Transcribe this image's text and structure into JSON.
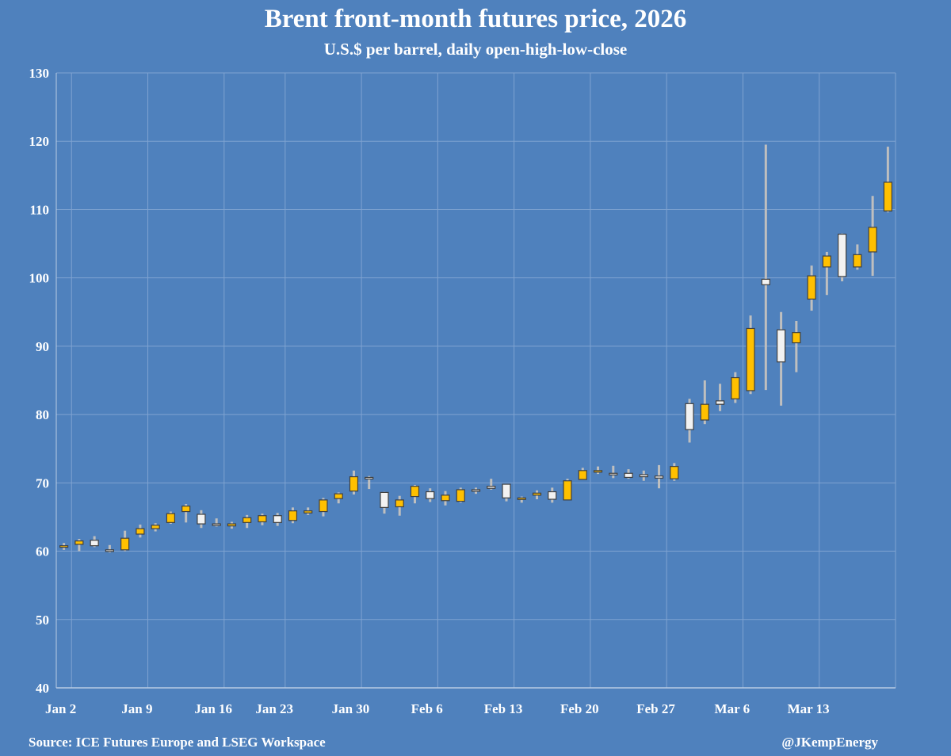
{
  "chart_data": {
    "type": "ohlc",
    "title": "Brent front-month futures price, 2026",
    "subtitle": "U.S.$ per barrel, daily open-high-low-close",
    "xlabel": "",
    "ylabel": "",
    "ylim": [
      40,
      130
    ],
    "y_ticks": [
      40,
      50,
      60,
      70,
      80,
      90,
      100,
      110,
      120,
      130
    ],
    "grid": true,
    "x_tick_labels": [
      "Jan 2",
      "Jan 9",
      "Jan 16",
      "Jan 23",
      "Jan 30",
      "Feb 6",
      "Feb 13",
      "Feb 20",
      "Feb 27",
      "Mar 6",
      "Mar 13"
    ],
    "colors": {
      "up": "#ffc000",
      "down": "#f2f2f2",
      "wick": "#bfbfbf",
      "outline": "#404040",
      "grid": "#7fa3d1",
      "axis": "#b9cce4"
    },
    "series": [
      {
        "date": "Jan 2",
        "open": 60.8,
        "high": 61.2,
        "low": 60.2,
        "close": 60.8
      },
      {
        "date": "Jan 5",
        "open": 61.0,
        "high": 61.8,
        "low": 60.0,
        "close": 61.5
      },
      {
        "date": "Jan 6",
        "open": 61.6,
        "high": 62.2,
        "low": 60.6,
        "close": 60.8
      },
      {
        "date": "Jan 7",
        "open": 60.2,
        "high": 60.9,
        "low": 59.8,
        "close": 60.0
      },
      {
        "date": "Jan 8",
        "open": 60.2,
        "high": 63.0,
        "low": 60.0,
        "close": 61.9
      },
      {
        "date": "Jan 9",
        "open": 62.5,
        "high": 63.9,
        "low": 62.0,
        "close": 63.3
      },
      {
        "date": "Jan 12",
        "open": 63.3,
        "high": 64.1,
        "low": 62.9,
        "close": 63.8
      },
      {
        "date": "Jan 13",
        "open": 64.2,
        "high": 65.8,
        "low": 64.0,
        "close": 65.5
      },
      {
        "date": "Jan 14",
        "open": 65.8,
        "high": 66.9,
        "low": 64.2,
        "close": 66.6
      },
      {
        "date": "Jan 15",
        "open": 65.4,
        "high": 66.0,
        "low": 63.4,
        "close": 64.0
      },
      {
        "date": "Jan 16",
        "open": 64.0,
        "high": 64.8,
        "low": 63.6,
        "close": 63.8
      },
      {
        "date": "Jan 20",
        "open": 63.7,
        "high": 64.3,
        "low": 63.3,
        "close": 64.0
      },
      {
        "date": "Jan 21",
        "open": 64.2,
        "high": 65.3,
        "low": 63.4,
        "close": 64.9
      },
      {
        "date": "Jan 22",
        "open": 64.3,
        "high": 65.5,
        "low": 63.8,
        "close": 65.2
      },
      {
        "date": "Jan 23",
        "open": 65.2,
        "high": 65.6,
        "low": 63.7,
        "close": 64.2
      },
      {
        "date": "Jan 26",
        "open": 64.5,
        "high": 66.4,
        "low": 64.1,
        "close": 65.9
      },
      {
        "date": "Jan 27",
        "open": 65.6,
        "high": 66.4,
        "low": 65.3,
        "close": 65.9
      },
      {
        "date": "Jan 28",
        "open": 65.8,
        "high": 67.8,
        "low": 65.1,
        "close": 67.5
      },
      {
        "date": "Jan 29",
        "open": 67.7,
        "high": 68.6,
        "low": 67.0,
        "close": 68.4
      },
      {
        "date": "Jan 30",
        "open": 68.8,
        "high": 71.8,
        "low": 68.3,
        "close": 70.9
      },
      {
        "date": "Feb 2",
        "open": 70.8,
        "high": 71.0,
        "low": 69.1,
        "close": 70.6
      },
      {
        "date": "Feb 3",
        "open": 68.6,
        "high": 68.7,
        "low": 65.5,
        "close": 66.4
      },
      {
        "date": "Feb 4",
        "open": 66.5,
        "high": 68.1,
        "low": 65.2,
        "close": 67.5
      },
      {
        "date": "Feb 5",
        "open": 68.0,
        "high": 69.7,
        "low": 67.0,
        "close": 69.5
      },
      {
        "date": "Feb 6",
        "open": 68.7,
        "high": 69.2,
        "low": 67.2,
        "close": 67.7
      },
      {
        "date": "Feb 9",
        "open": 67.4,
        "high": 68.8,
        "low": 66.7,
        "close": 68.2
      },
      {
        "date": "Feb 10",
        "open": 67.3,
        "high": 69.3,
        "low": 67.1,
        "close": 69.0
      },
      {
        "date": "Feb 11",
        "open": 69.0,
        "high": 69.3,
        "low": 68.4,
        "close": 68.9
      },
      {
        "date": "Feb 12",
        "open": 69.5,
        "high": 70.6,
        "low": 69.0,
        "close": 69.2
      },
      {
        "date": "Feb 13",
        "open": 69.8,
        "high": 69.8,
        "low": 67.3,
        "close": 67.8
      },
      {
        "date": "Feb 16",
        "open": 67.6,
        "high": 68.0,
        "low": 67.1,
        "close": 67.8
      },
      {
        "date": "Feb 17",
        "open": 68.2,
        "high": 68.9,
        "low": 67.6,
        "close": 68.5
      },
      {
        "date": "Feb 18",
        "open": 68.7,
        "high": 69.3,
        "low": 67.1,
        "close": 67.6
      },
      {
        "date": "Feb 19",
        "open": 67.5,
        "high": 70.6,
        "low": 67.5,
        "close": 70.3
      },
      {
        "date": "Feb 20",
        "open": 70.5,
        "high": 72.2,
        "low": 70.5,
        "close": 71.8
      },
      {
        "date": "Feb 23",
        "open": 71.6,
        "high": 72.4,
        "low": 71.3,
        "close": 71.8
      },
      {
        "date": "Feb 24",
        "open": 71.4,
        "high": 72.5,
        "low": 70.7,
        "close": 71.2
      },
      {
        "date": "Feb 25",
        "open": 71.4,
        "high": 72.0,
        "low": 70.6,
        "close": 70.8
      },
      {
        "date": "Feb 26",
        "open": 71.2,
        "high": 71.8,
        "low": 70.3,
        "close": 70.9
      },
      {
        "date": "Feb 27",
        "open": 71.0,
        "high": 72.6,
        "low": 69.2,
        "close": 70.7
      },
      {
        "date": "Mar 2",
        "open": 70.6,
        "high": 72.9,
        "low": 70.3,
        "close": 72.4
      },
      {
        "date": "Mar 3",
        "open": 81.6,
        "high": 82.3,
        "low": 75.9,
        "close": 77.8
      },
      {
        "date": "Mar 4",
        "open": 79.2,
        "high": 85.0,
        "low": 78.6,
        "close": 81.5
      },
      {
        "date": "Mar 5",
        "open": 82.0,
        "high": 84.5,
        "low": 80.5,
        "close": 81.5
      },
      {
        "date": "Mar 6",
        "open": 82.3,
        "high": 86.2,
        "low": 81.7,
        "close": 85.4
      },
      {
        "date": "Mar 9",
        "open": 83.5,
        "high": 94.5,
        "low": 83.0,
        "close": 92.6
      },
      {
        "date": "Mar 10",
        "open": 99.8,
        "high": 119.5,
        "low": 83.6,
        "close": 99.0
      },
      {
        "date": "Mar 11",
        "open": 92.4,
        "high": 95.0,
        "low": 81.3,
        "close": 87.7
      },
      {
        "date": "Mar 12",
        "open": 90.5,
        "high": 93.7,
        "low": 86.2,
        "close": 92.0
      },
      {
        "date": "Mar 13",
        "open": 96.9,
        "high": 101.8,
        "low": 95.2,
        "close": 100.3
      },
      {
        "date": "Mar 16",
        "open": 101.6,
        "high": 103.8,
        "low": 97.5,
        "close": 103.2
      },
      {
        "date": "Mar 17",
        "open": 106.4,
        "high": 106.5,
        "low": 99.5,
        "close": 100.2
      },
      {
        "date": "Mar 18",
        "open": 101.6,
        "high": 104.9,
        "low": 101.2,
        "close": 103.4
      },
      {
        "date": "Mar 19",
        "open": 103.8,
        "high": 112.0,
        "low": 100.3,
        "close": 107.4
      },
      {
        "date": "Mar 20",
        "open": 109.8,
        "high": 119.2,
        "low": 109.6,
        "close": 114.0
      }
    ]
  },
  "footer": {
    "source": "Source: ICE Futures Europe and LSEG Workspace",
    "credit": "@JKempEnergy"
  }
}
